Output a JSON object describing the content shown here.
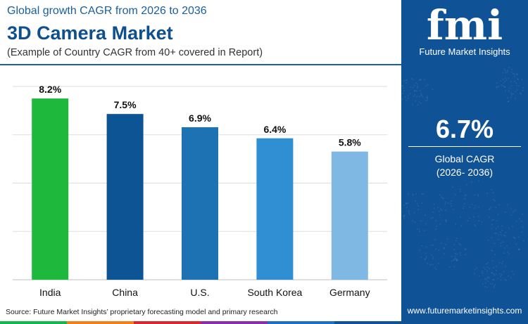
{
  "header": {
    "subtitle": "Global growth CAGR from 2026 to 2036",
    "title": "3D Camera Market",
    "note": "(Example of Country CAGR from 40+ covered in Report)"
  },
  "chart_data": {
    "type": "bar",
    "categories": [
      "India",
      "China",
      "U.S.",
      "South Korea",
      "Germany"
    ],
    "values": [
      8.2,
      7.5,
      6.9,
      6.4,
      5.8
    ],
    "value_labels": [
      "8.2%",
      "7.5%",
      "6.9%",
      "6.4%",
      "5.8%"
    ],
    "colors": [
      "#1db83c",
      "#0c5494",
      "#1c72b2",
      "#2f8fd2",
      "#7fb9e3"
    ],
    "ylim": [
      0,
      9
    ],
    "grid": true,
    "legend": "none"
  },
  "source": "Source: Future Market Insights’ proprietary forecasting model and primary research",
  "bottom_bar_colors": [
    "#14b84a",
    "#f07f1c",
    "#d8272e",
    "#8b2fa6",
    "#1f6ec2",
    "#0f5296"
  ],
  "side_panel": {
    "logo_mark": "fmi",
    "logo_text": "Future Market Insights",
    "cagr_value": "6.7%",
    "cagr_label": "Global CAGR",
    "cagr_period": "(2026- 2036)",
    "website": "www.futuremarketinsights.com",
    "background": "#0f5296"
  }
}
